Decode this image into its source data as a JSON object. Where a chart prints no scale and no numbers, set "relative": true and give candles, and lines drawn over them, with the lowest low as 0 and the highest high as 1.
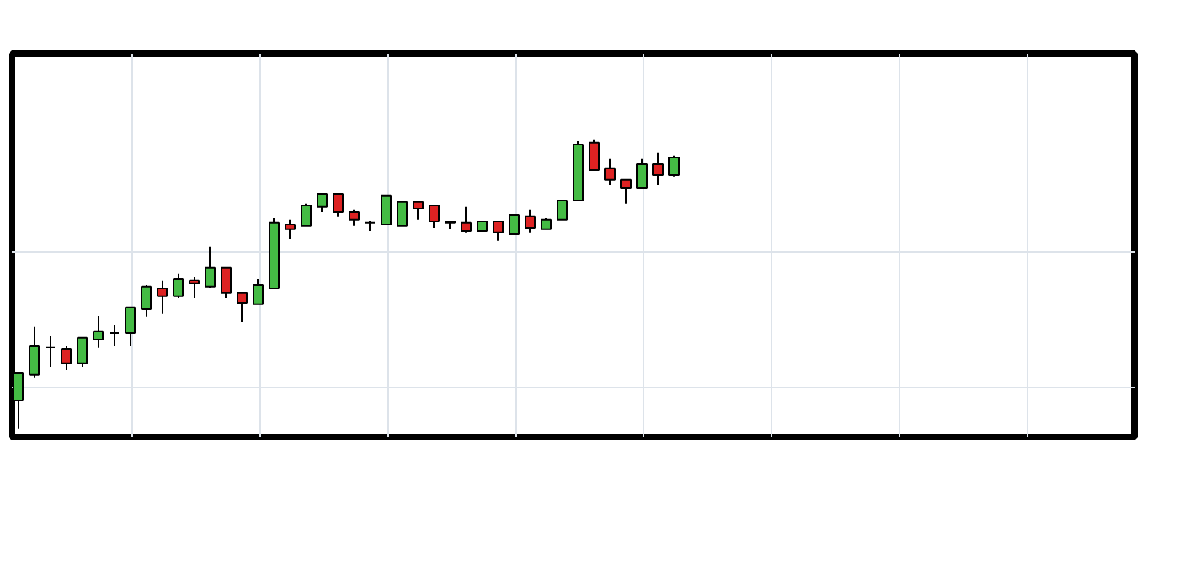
{
  "chart_data": {
    "type": "candlestick",
    "relative": true,
    "grid": true,
    "categories": [
      null,
      null,
      null,
      null,
      null,
      null,
      null,
      null,
      null,
      null,
      null,
      null,
      null,
      null,
      null,
      null,
      null,
      null,
      null,
      null,
      null,
      null,
      null,
      null,
      null,
      null,
      null,
      null,
      null,
      null,
      null,
      null,
      null,
      null,
      null,
      null,
      null,
      null,
      null,
      null,
      null,
      null
    ],
    "ohlc": [
      [
        0.099,
        0.193,
        0,
        0.193
      ],
      [
        0.188,
        0.354,
        0.177,
        0.287
      ],
      [
        0.282,
        0.32,
        0.215,
        0.282
      ],
      [
        0.276,
        0.287,
        0.204,
        0.227
      ],
      [
        0.227,
        0.315,
        0.215,
        0.315
      ],
      [
        0.309,
        0.392,
        0.282,
        0.337
      ],
      [
        0.331,
        0.359,
        0.287,
        0.331
      ],
      [
        0.331,
        0.42,
        0.287,
        0.42
      ],
      [
        0.414,
        0.497,
        0.387,
        0.492
      ],
      [
        0.486,
        0.514,
        0.398,
        0.459
      ],
      [
        0.459,
        0.536,
        0.453,
        0.519
      ],
      [
        0.514,
        0.525,
        0.453,
        0.503
      ],
      [
        0.492,
        0.63,
        0.486,
        0.558
      ],
      [
        0.558,
        0.558,
        0.453,
        0.47
      ],
      [
        0.47,
        0.47,
        0.37,
        0.436
      ],
      [
        0.431,
        0.519,
        0.431,
        0.497
      ],
      [
        0.486,
        0.729,
        0.486,
        0.713
      ],
      [
        0.707,
        0.724,
        0.657,
        0.691
      ],
      [
        0.702,
        0.779,
        0.702,
        0.773
      ],
      [
        0.768,
        0.812,
        0.751,
        0.812
      ],
      [
        0.812,
        0.812,
        0.735,
        0.751
      ],
      [
        0.751,
        0.757,
        0.702,
        0.724
      ],
      [
        0.713,
        0.718,
        0.685,
        0.713
      ],
      [
        0.707,
        0.807,
        0.707,
        0.807
      ],
      [
        0.702,
        0.785,
        0.702,
        0.785
      ],
      [
        0.785,
        0.785,
        0.724,
        0.762
      ],
      [
        0.773,
        0.773,
        0.696,
        0.718
      ],
      [
        0.718,
        0.718,
        0.691,
        0.713
      ],
      [
        0.713,
        0.768,
        0.68,
        0.685
      ],
      [
        0.685,
        0.718,
        0.685,
        0.718
      ],
      [
        0.718,
        0.718,
        0.652,
        0.68
      ],
      [
        0.674,
        0.74,
        0.674,
        0.74
      ],
      [
        0.735,
        0.757,
        0.68,
        0.696
      ],
      [
        0.691,
        0.729,
        0.691,
        0.724
      ],
      [
        0.724,
        0.79,
        0.724,
        0.79
      ],
      [
        0.79,
        0.994,
        0.79,
        0.983
      ],
      [
        0.989,
        1.0,
        0.895,
        0.895
      ],
      [
        0.901,
        0.934,
        0.845,
        0.862
      ],
      [
        0.862,
        0.862,
        0.779,
        0.834
      ],
      [
        0.834,
        0.934,
        0.834,
        0.917
      ],
      [
        0.917,
        0.956,
        0.845,
        0.878
      ],
      [
        0.878,
        0.945,
        0.873,
        0.939
      ]
    ]
  }
}
